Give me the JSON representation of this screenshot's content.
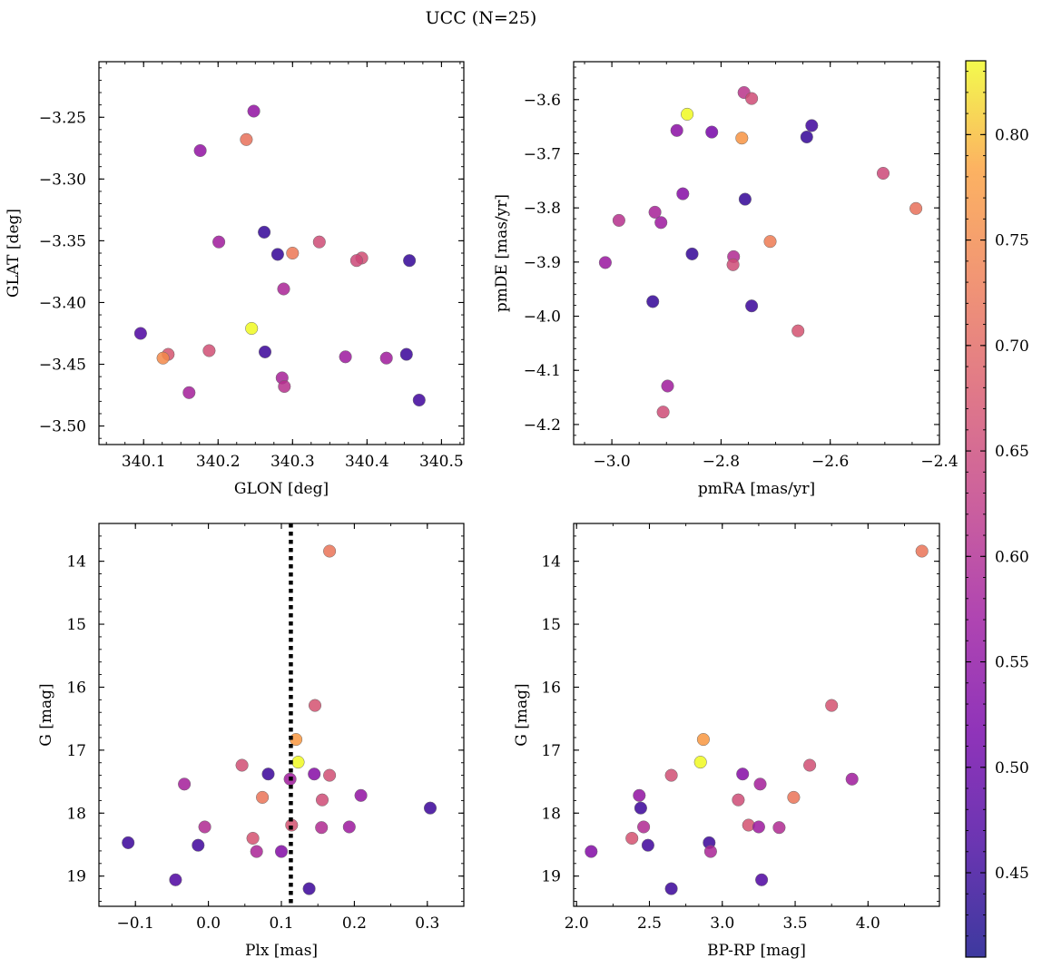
{
  "suptitle": "UCC (N=25)",
  "colorbar": {
    "range": [
      0.41,
      0.835
    ],
    "ticks": [
      "0.45",
      "0.50",
      "0.55",
      "0.60",
      "0.65",
      "0.70",
      "0.75",
      "0.80"
    ],
    "colormap": "plasma"
  },
  "chart_data": [
    {
      "type": "scatter",
      "xlabel": "GLON [deg]",
      "ylabel": "GLAT [deg]",
      "xlim": [
        340.04,
        340.53
      ],
      "ylim": [
        -3.515,
        -3.205
      ],
      "xticks": [
        "340.1",
        "340.2",
        "340.3",
        "340.4",
        "340.5"
      ],
      "yticks": [
        "−3.25",
        "−3.30",
        "−3.35",
        "−3.40",
        "−3.45",
        "−3.50"
      ],
      "points": [
        {
          "x": 340.248,
          "y": -3.245,
          "c": 0.555
        },
        {
          "x": 340.238,
          "y": -3.268,
          "c": 0.715
        },
        {
          "x": 340.176,
          "y": -3.277,
          "c": 0.555
        },
        {
          "x": 340.262,
          "y": -3.343,
          "c": 0.445
        },
        {
          "x": 340.201,
          "y": -3.351,
          "c": 0.575
        },
        {
          "x": 340.336,
          "y": -3.351,
          "c": 0.655
        },
        {
          "x": 340.28,
          "y": -3.361,
          "c": 0.445
        },
        {
          "x": 340.3,
          "y": -3.36,
          "c": 0.725
        },
        {
          "x": 340.393,
          "y": -3.364,
          "c": 0.66
        },
        {
          "x": 340.386,
          "y": -3.366,
          "c": 0.65
        },
        {
          "x": 340.457,
          "y": -3.366,
          "c": 0.445
        },
        {
          "x": 340.288,
          "y": -3.389,
          "c": 0.59
        },
        {
          "x": 340.245,
          "y": -3.421,
          "c": 0.835
        },
        {
          "x": 340.096,
          "y": -3.425,
          "c": 0.47
        },
        {
          "x": 340.263,
          "y": -3.44,
          "c": 0.45
        },
        {
          "x": 340.133,
          "y": -3.442,
          "c": 0.67
        },
        {
          "x": 340.188,
          "y": -3.439,
          "c": 0.66
        },
        {
          "x": 340.371,
          "y": -3.444,
          "c": 0.57
        },
        {
          "x": 340.126,
          "y": -3.445,
          "c": 0.75
        },
        {
          "x": 340.426,
          "y": -3.445,
          "c": 0.575
        },
        {
          "x": 340.453,
          "y": -3.442,
          "c": 0.45
        },
        {
          "x": 340.161,
          "y": -3.473,
          "c": 0.58
        },
        {
          "x": 340.286,
          "y": -3.461,
          "c": 0.585
        },
        {
          "x": 340.289,
          "y": -3.468,
          "c": 0.61
        },
        {
          "x": 340.47,
          "y": -3.479,
          "c": 0.455
        }
      ]
    },
    {
      "type": "scatter",
      "xlabel": "pmRA [mas/yr]",
      "ylabel": "pmDE [mas/yr]",
      "xlim": [
        -3.07,
        -2.4
      ],
      "ylim": [
        -4.237,
        -3.53
      ],
      "xticks": [
        "−3.0",
        "−2.8",
        "−2.6",
        "−2.4"
      ],
      "yticks": [
        "−3.6",
        "−3.7",
        "−3.8",
        "−3.9",
        "−4.0",
        "−4.1",
        "−4.2"
      ],
      "points": [
        {
          "x": -2.758,
          "y": -3.587,
          "c": 0.615
        },
        {
          "x": -2.744,
          "y": -3.598,
          "c": 0.655
        },
        {
          "x": -2.862,
          "y": -3.627,
          "c": 0.835
        },
        {
          "x": -2.634,
          "y": -3.648,
          "c": 0.455
        },
        {
          "x": -2.881,
          "y": -3.657,
          "c": 0.545
        },
        {
          "x": -2.817,
          "y": -3.66,
          "c": 0.52
        },
        {
          "x": -2.643,
          "y": -3.669,
          "c": 0.445
        },
        {
          "x": -2.762,
          "y": -3.671,
          "c": 0.765
        },
        {
          "x": -2.503,
          "y": -3.736,
          "c": 0.65
        },
        {
          "x": -2.87,
          "y": -3.774,
          "c": 0.54
        },
        {
          "x": -2.756,
          "y": -3.784,
          "c": 0.445
        },
        {
          "x": -2.443,
          "y": -3.801,
          "c": 0.715
        },
        {
          "x": -2.921,
          "y": -3.808,
          "c": 0.585
        },
        {
          "x": -2.987,
          "y": -3.823,
          "c": 0.61
        },
        {
          "x": -2.91,
          "y": -3.827,
          "c": 0.57
        },
        {
          "x": -2.71,
          "y": -3.862,
          "c": 0.73
        },
        {
          "x": -2.853,
          "y": -3.885,
          "c": 0.445
        },
        {
          "x": -2.777,
          "y": -3.89,
          "c": 0.6
        },
        {
          "x": -2.778,
          "y": -3.905,
          "c": 0.655
        },
        {
          "x": -3.012,
          "y": -3.901,
          "c": 0.565
        },
        {
          "x": -2.925,
          "y": -3.973,
          "c": 0.445
        },
        {
          "x": -2.744,
          "y": -3.981,
          "c": 0.45
        },
        {
          "x": -2.659,
          "y": -4.027,
          "c": 0.665
        },
        {
          "x": -2.898,
          "y": -4.129,
          "c": 0.575
        },
        {
          "x": -2.906,
          "y": -4.177,
          "c": 0.655
        }
      ]
    },
    {
      "type": "scatter",
      "xlabel": "Plx [mas]",
      "ylabel": "G [mag]",
      "xlim": [
        -0.15,
        0.35
      ],
      "ylim": [
        19.48,
        13.4
      ],
      "xticks": [
        "−0.1",
        "0.0",
        "0.1",
        "0.2",
        "0.3"
      ],
      "yticks": [
        "14",
        "15",
        "16",
        "17",
        "18",
        "19"
      ],
      "vline": 0.113,
      "points": [
        {
          "x": 0.166,
          "y": 13.84,
          "c": 0.72
        },
        {
          "x": 0.146,
          "y": 16.29,
          "c": 0.665
        },
        {
          "x": 0.12,
          "y": 16.83,
          "c": 0.77
        },
        {
          "x": 0.123,
          "y": 17.19,
          "c": 0.835
        },
        {
          "x": 0.046,
          "y": 17.24,
          "c": 0.66
        },
        {
          "x": 0.082,
          "y": 17.38,
          "c": 0.45
        },
        {
          "x": 0.145,
          "y": 17.38,
          "c": 0.54
        },
        {
          "x": 0.166,
          "y": 17.4,
          "c": 0.66
        },
        {
          "x": 0.112,
          "y": 17.46,
          "c": 0.575
        },
        {
          "x": -0.033,
          "y": 17.54,
          "c": 0.58
        },
        {
          "x": 0.209,
          "y": 17.72,
          "c": 0.555
        },
        {
          "x": 0.074,
          "y": 17.75,
          "c": 0.72
        },
        {
          "x": 0.156,
          "y": 17.79,
          "c": 0.655
        },
        {
          "x": 0.304,
          "y": 17.92,
          "c": 0.45
        },
        {
          "x": 0.114,
          "y": 18.19,
          "c": 0.665
        },
        {
          "x": -0.005,
          "y": 18.22,
          "c": 0.6
        },
        {
          "x": 0.155,
          "y": 18.23,
          "c": 0.6
        },
        {
          "x": 0.193,
          "y": 18.22,
          "c": 0.57
        },
        {
          "x": 0.061,
          "y": 18.4,
          "c": 0.665
        },
        {
          "x": -0.11,
          "y": 18.47,
          "c": 0.45
        },
        {
          "x": -0.014,
          "y": 18.51,
          "c": 0.455
        },
        {
          "x": 0.066,
          "y": 18.61,
          "c": 0.59
        },
        {
          "x": 0.1,
          "y": 18.61,
          "c": 0.535
        },
        {
          "x": -0.045,
          "y": 19.06,
          "c": 0.47
        },
        {
          "x": 0.138,
          "y": 19.2,
          "c": 0.45
        }
      ]
    },
    {
      "type": "scatter",
      "xlabel": "BP-RP [mag]",
      "ylabel": "G [mag]",
      "xlim": [
        1.98,
        4.49
      ],
      "ylim": [
        19.48,
        13.4
      ],
      "xticks": [
        "2.0",
        "2.5",
        "3.0",
        "3.5",
        "4.0"
      ],
      "yticks": [
        "14",
        "15",
        "16",
        "17",
        "18",
        "19"
      ],
      "points": [
        {
          "x": 4.37,
          "y": 13.84,
          "c": 0.72
        },
        {
          "x": 3.75,
          "y": 16.29,
          "c": 0.665
        },
        {
          "x": 2.87,
          "y": 16.83,
          "c": 0.77
        },
        {
          "x": 2.85,
          "y": 17.19,
          "c": 0.835
        },
        {
          "x": 3.6,
          "y": 17.24,
          "c": 0.66
        },
        {
          "x": 3.14,
          "y": 17.38,
          "c": 0.54
        },
        {
          "x": 2.65,
          "y": 17.4,
          "c": 0.66
        },
        {
          "x": 3.89,
          "y": 17.46,
          "c": 0.575
        },
        {
          "x": 3.26,
          "y": 17.54,
          "c": 0.58
        },
        {
          "x": 2.43,
          "y": 17.72,
          "c": 0.555
        },
        {
          "x": 3.49,
          "y": 17.75,
          "c": 0.72
        },
        {
          "x": 3.11,
          "y": 17.79,
          "c": 0.655
        },
        {
          "x": 2.44,
          "y": 17.92,
          "c": 0.45
        },
        {
          "x": 3.18,
          "y": 18.19,
          "c": 0.665
        },
        {
          "x": 2.46,
          "y": 18.22,
          "c": 0.6
        },
        {
          "x": 3.25,
          "y": 18.22,
          "c": 0.57
        },
        {
          "x": 3.39,
          "y": 18.23,
          "c": 0.6
        },
        {
          "x": 2.38,
          "y": 18.4,
          "c": 0.665
        },
        {
          "x": 2.91,
          "y": 18.47,
          "c": 0.45
        },
        {
          "x": 2.49,
          "y": 18.51,
          "c": 0.455
        },
        {
          "x": 2.1,
          "y": 18.61,
          "c": 0.535
        },
        {
          "x": 2.92,
          "y": 18.61,
          "c": 0.59
        },
        {
          "x": 3.27,
          "y": 19.06,
          "c": 0.47
        },
        {
          "x": 2.65,
          "y": 19.2,
          "c": 0.45
        }
      ]
    }
  ]
}
